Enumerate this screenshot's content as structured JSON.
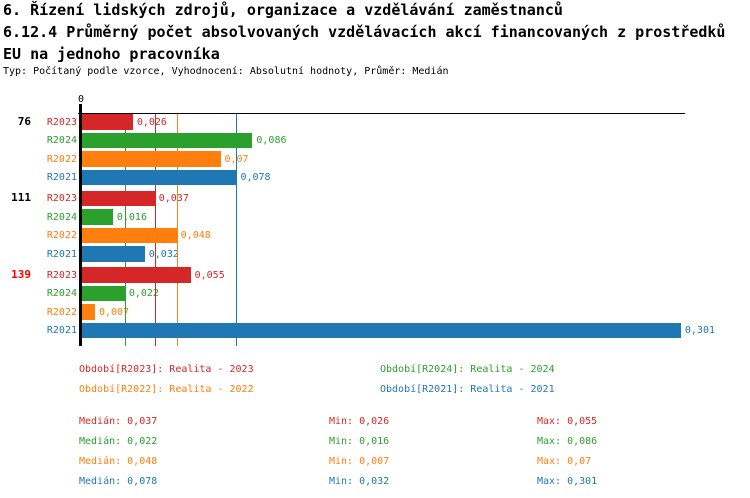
{
  "header": {
    "title_line1": "6. Řízení lidských zdrojů, organizace a vzdělávání zaměstnanců",
    "title_line2": "6.12.4 Průměrný počet absolvovaných vzdělávacích akcí financovaných z prostředků",
    "title_line3": "EU na jednoho pracovníka",
    "subtitle": "Typ: Počítaný podle vzorce, Vyhodnocení: Absolutní hodnoty, Průměr: Medián"
  },
  "chart_data": {
    "type": "bar",
    "orientation": "horizontal",
    "title": "6.12.4 Průměrný počet absolvovaných vzdělávacích akcí financovaných z prostředků EU na jednoho pracovníka",
    "x_axis": {
      "zero_label": "0",
      "xlim": [
        0,
        0.32
      ],
      "gridlines": "median-per-series"
    },
    "series": [
      {
        "id": "R2023",
        "label": "R2023",
        "color": "#d62728",
        "median": 0.037,
        "median_display": "0,037",
        "min": 0.026,
        "max": 0.055
      },
      {
        "id": "R2024",
        "label": "R2024",
        "color": "#2ca02c",
        "median": 0.022,
        "median_display": "0,022",
        "min": 0.016,
        "max": 0.086
      },
      {
        "id": "R2022",
        "label": "R2022",
        "color": "#ff7f0e",
        "median": 0.048,
        "median_display": "0,048",
        "min": 0.007,
        "max": 0.07
      },
      {
        "id": "R2021",
        "label": "R2021",
        "color": "#1f77b4",
        "median": 0.078,
        "median_display": "0,078",
        "min": 0.032,
        "max": 0.301
      }
    ],
    "groups": [
      {
        "label": "76",
        "label_color": "#000000",
        "bars": [
          {
            "series": "R2023",
            "value": 0.026,
            "display": "0,026"
          },
          {
            "series": "R2024",
            "value": 0.086,
            "display": "0,086"
          },
          {
            "series": "R2022",
            "value": 0.07,
            "display": "0,07"
          },
          {
            "series": "R2021",
            "value": 0.078,
            "display": "0,078"
          }
        ]
      },
      {
        "label": "111",
        "label_color": "#000000",
        "bars": [
          {
            "series": "R2023",
            "value": 0.037,
            "display": "0,037"
          },
          {
            "series": "R2024",
            "value": 0.016,
            "display": "0,016"
          },
          {
            "series": "R2022",
            "value": 0.048,
            "display": "0,048"
          },
          {
            "series": "R2021",
            "value": 0.032,
            "display": "0,032"
          }
        ]
      },
      {
        "label": "139",
        "label_color": "#ff0000",
        "bars": [
          {
            "series": "R2023",
            "value": 0.055,
            "display": "0,055"
          },
          {
            "series": "R2024",
            "value": 0.022,
            "display": "0,022"
          },
          {
            "series": "R2022",
            "value": 0.007,
            "display": "0,007"
          },
          {
            "series": "R2021",
            "value": 0.301,
            "display": "0,301"
          }
        ]
      }
    ]
  },
  "legend": {
    "items": [
      {
        "label": "Období[R2023]: Realita - 2023",
        "color": "#d62728"
      },
      {
        "label": "Období[R2024]: Realita - 2024",
        "color": "#2ca02c"
      },
      {
        "label": "Období[R2022]: Realita - 2022",
        "color": "#ff7f0e"
      },
      {
        "label": "Období[R2021]: Realita - 2021",
        "color": "#1f77b4"
      }
    ]
  },
  "stats": {
    "rows": [
      {
        "color": "#d62728",
        "median": "Medián: 0,037",
        "min": "Min: 0,026",
        "max": "Max: 0,055"
      },
      {
        "color": "#2ca02c",
        "median": "Medián: 0,022",
        "min": "Min: 0,016",
        "max": "Max: 0,086"
      },
      {
        "color": "#ff7f0e",
        "median": "Medián: 0,048",
        "min": "Min: 0,007",
        "max": "Max: 0,07"
      },
      {
        "color": "#1f77b4",
        "median": "Medián: 0,078",
        "min": "Min: 0,032",
        "max": "Max: 0,301"
      }
    ]
  }
}
